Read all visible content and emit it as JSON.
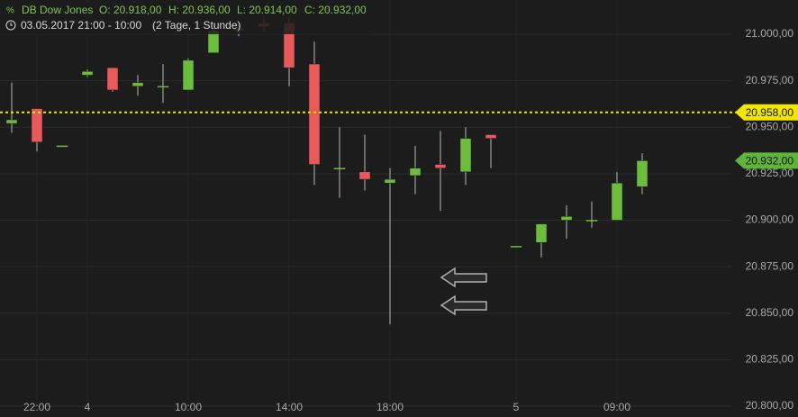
{
  "chart_data": {
    "type": "candlestick",
    "title": "DB Dow Jones",
    "summary": [
      "O: 20.918,00",
      "H: 20.936,00",
      "L: 20.914,00",
      "C: 20.932,00"
    ],
    "subtitle": "03.05.2017 21:00 - 10:00",
    "period": "(2 Tage, 1 Stunde)",
    "categories": [
      null,
      "22:00",
      null,
      "4",
      null,
      null,
      null,
      "10:00",
      null,
      null,
      null,
      "14:00",
      null,
      null,
      null,
      "18:00",
      null,
      null,
      null,
      null,
      "5",
      null,
      null,
      null,
      "09:00",
      null
    ],
    "open": [
      20952,
      20960,
      20940,
      20978,
      20982,
      20972,
      20972,
      20970,
      20990,
      21002,
      21006,
      21006,
      20984,
      20928,
      20926,
      20920,
      20924,
      20930,
      20926,
      20946,
      20886,
      20888,
      20900,
      20900,
      20900,
      20918
    ],
    "high": [
      20974,
      20960,
      20940,
      20981,
      20982,
      20978,
      20984,
      20987,
      21006,
      21006,
      21009,
      21009,
      20996,
      20950,
      20946,
      20928,
      20940,
      20948,
      20950,
      20946,
      20886,
      20898,
      20908,
      20910,
      20926,
      20936
    ],
    "low": [
      20947,
      20937,
      20940,
      20977,
      20969,
      20967,
      20963,
      20970,
      20990,
      20999,
      21001,
      20972,
      20919,
      20912,
      20916,
      20844,
      20914,
      20905,
      20919,
      20928,
      20886,
      20880,
      20890,
      20896,
      20900,
      20914
    ],
    "close": [
      20954,
      20942,
      20940,
      20980,
      20970,
      20974,
      20972,
      20986,
      21002,
      21003,
      21004,
      20982,
      20930,
      20928,
      20922,
      20922,
      20928,
      20928,
      20944,
      20944,
      20886,
      20898,
      20902,
      20900,
      20920,
      20932
    ],
    "up_color": "#6cbd3c",
    "down_color": "#e85a5a",
    "ylim": [
      20794.2,
      21018.4
    ],
    "yticks": [
      {
        "value": 20800,
        "label": "20.800,00"
      },
      {
        "value": 20825,
        "label": "20.825,00"
      },
      {
        "value": 20850,
        "label": "20.850,00"
      },
      {
        "value": 20875,
        "label": "20.875,00"
      },
      {
        "value": 20900,
        "label": "20.900,00"
      },
      {
        "value": 20925,
        "label": "20.925,00"
      },
      {
        "value": 20950,
        "label": "20.950,00"
      },
      {
        "value": 20975,
        "label": "20.975,00"
      },
      {
        "value": 21000,
        "label": "21.000,00"
      }
    ],
    "grid": true,
    "price_lines": [
      {
        "value": 20958,
        "label": "20.958,00",
        "color": "#f2e600",
        "dashed": true
      },
      {
        "value": 20932,
        "label": "20.932,00",
        "color": "#5fb43a",
        "dashed": false
      }
    ]
  }
}
